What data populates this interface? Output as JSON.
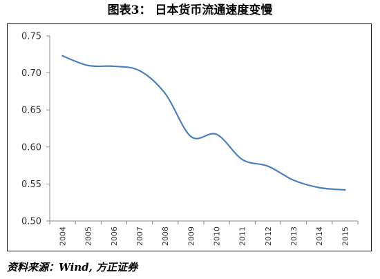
{
  "title": "图表3：  日本货币流通速度变慢",
  "source": "资料来源：Wind, 方正证券",
  "chart_data": {
    "type": "line",
    "title": "图表3：  日本货币流通速度变慢",
    "xlabel": "",
    "ylabel": "",
    "x": [
      "2004",
      "2005",
      "2006",
      "2007",
      "2008",
      "2009",
      "2010",
      "2011",
      "2012",
      "2013",
      "2014",
      "2015"
    ],
    "series": [
      {
        "values": [
          0.723,
          0.71,
          0.709,
          0.703,
          0.672,
          0.614,
          0.617,
          0.583,
          0.574,
          0.555,
          0.545,
          0.542
        ]
      }
    ],
    "ylim": [
      0.5,
      0.75
    ],
    "yticks": [
      "0.50",
      "0.55",
      "0.60",
      "0.65",
      "0.70",
      "0.75"
    ],
    "grid": false,
    "legend": "none",
    "line_color": "#4a7fc1"
  }
}
